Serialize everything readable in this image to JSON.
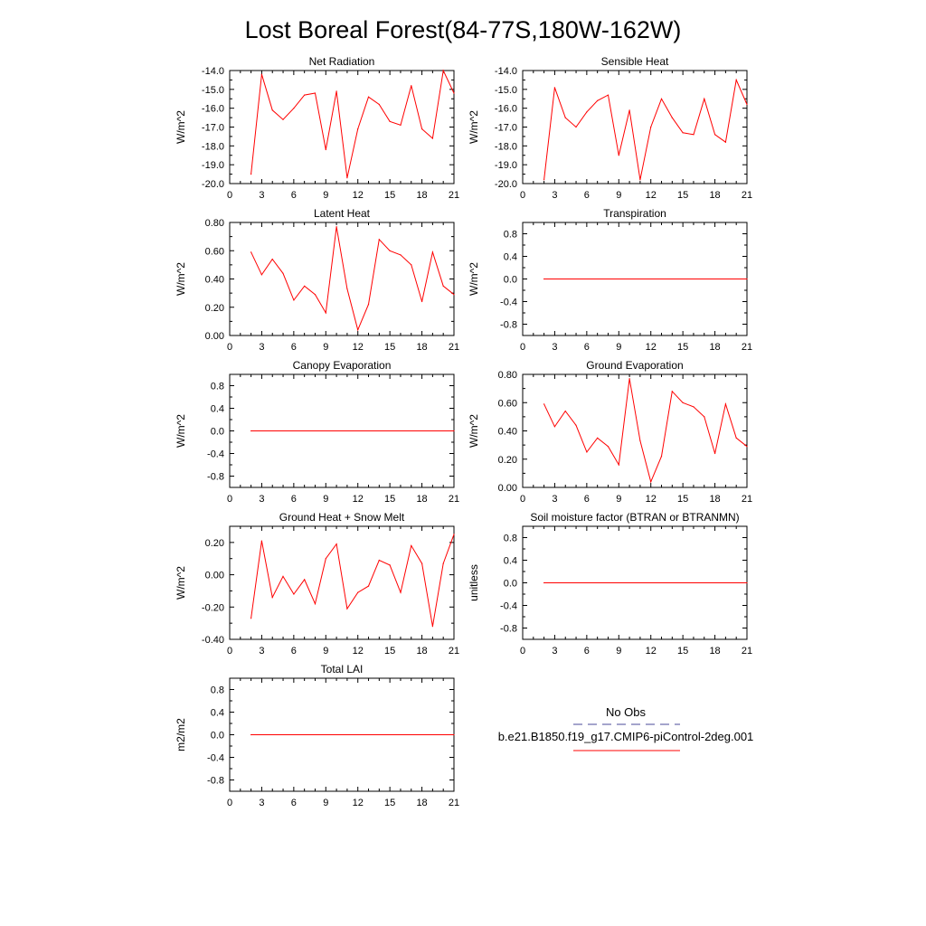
{
  "title": "Lost Boreal Forest(84-77S,180W-162W)",
  "colors": {
    "model": "#ff0000",
    "obs": "#4a4a9a",
    "axis": "#000000"
  },
  "legend": {
    "obs_label": "No Obs",
    "model_label": "b.e21.B1850.f19_g17.CMIP6-piControl-2deg.001"
  },
  "chart_data": [
    {
      "id": "net-radiation",
      "type": "line",
      "title": "Net Radiation",
      "ylabel": "W/m^2",
      "xlim": [
        0,
        21
      ],
      "xticks": [
        0,
        3,
        6,
        9,
        12,
        15,
        18,
        21
      ],
      "ylim": [
        -20.0,
        -14.0
      ],
      "yticks": [
        -20,
        -19,
        -18,
        -17,
        -16,
        -15,
        -14
      ],
      "ytick_labels": [
        "-20.0",
        "-19.0",
        "-18.0",
        "-17.0",
        "-16.0",
        "-15.0",
        "-14.0"
      ],
      "x": [
        2,
        3,
        4,
        5,
        6,
        7,
        8,
        9,
        10,
        11,
        12,
        13,
        14,
        15,
        16,
        17,
        18,
        19,
        20,
        21
      ],
      "series": [
        {
          "name": "b.e21.B1850.f19_g17.CMIP6-piControl-2deg.001",
          "values": [
            -19.5,
            -14.2,
            -16.1,
            -16.6,
            -16.0,
            -15.3,
            -15.2,
            -18.2,
            -15.1,
            -19.7,
            -17.1,
            -15.4,
            -15.8,
            -16.7,
            -16.9,
            -14.8,
            -17.1,
            -17.6,
            -14.0,
            -15.2
          ]
        }
      ]
    },
    {
      "id": "sensible-heat",
      "type": "line",
      "title": "Sensible Heat",
      "ylabel": "W/m^2",
      "xlim": [
        0,
        21
      ],
      "xticks": [
        0,
        3,
        6,
        9,
        12,
        15,
        18,
        21
      ],
      "ylim": [
        -20.0,
        -14.0
      ],
      "yticks": [
        -20,
        -19,
        -18,
        -17,
        -16,
        -15,
        -14
      ],
      "ytick_labels": [
        "-20.0",
        "-19.0",
        "-18.0",
        "-17.0",
        "-16.0",
        "-15.0",
        "-14.0"
      ],
      "x": [
        2,
        3,
        4,
        5,
        6,
        7,
        8,
        9,
        10,
        11,
        12,
        13,
        14,
        15,
        16,
        17,
        18,
        19,
        20,
        21
      ],
      "series": [
        {
          "name": "b.e21.B1850.f19_g17.CMIP6-piControl-2deg.001",
          "values": [
            -19.8,
            -14.9,
            -16.5,
            -17.0,
            -16.2,
            -15.6,
            -15.3,
            -18.5,
            -16.1,
            -19.8,
            -17.0,
            -15.5,
            -16.5,
            -17.3,
            -17.4,
            -15.5,
            -17.4,
            -17.8,
            -14.5,
            -15.8
          ]
        }
      ]
    },
    {
      "id": "latent-heat",
      "type": "line",
      "title": "Latent Heat",
      "ylabel": "W/m^2",
      "xlim": [
        0,
        21
      ],
      "xticks": [
        0,
        3,
        6,
        9,
        12,
        15,
        18,
        21
      ],
      "ylim": [
        0.0,
        0.8
      ],
      "yticks": [
        0,
        0.2,
        0.4,
        0.6,
        0.8
      ],
      "ytick_labels": [
        "0.00",
        "0.20",
        "0.40",
        "0.60",
        "0.80"
      ],
      "x": [
        2,
        3,
        4,
        5,
        6,
        7,
        8,
        9,
        10,
        11,
        12,
        13,
        14,
        15,
        16,
        17,
        18,
        19,
        20,
        21
      ],
      "series": [
        {
          "name": "b.e21.B1850.f19_g17.CMIP6-piControl-2deg.001",
          "values": [
            0.59,
            0.43,
            0.54,
            0.44,
            0.25,
            0.35,
            0.29,
            0.16,
            0.77,
            0.33,
            0.04,
            0.22,
            0.68,
            0.6,
            0.57,
            0.5,
            0.24,
            0.59,
            0.35,
            0.29
          ]
        }
      ]
    },
    {
      "id": "transpiration",
      "type": "line",
      "title": "Transpiration",
      "ylabel": "W/m^2",
      "xlim": [
        0,
        21
      ],
      "xticks": [
        0,
        3,
        6,
        9,
        12,
        15,
        18,
        21
      ],
      "ylim": [
        -1.0,
        1.0
      ],
      "yticks": [
        -0.8,
        -0.4,
        0,
        0.4,
        0.8
      ],
      "ytick_labels": [
        "-0.8",
        "-0.4",
        "0.0",
        "0.4",
        "0.8"
      ],
      "x": [
        2,
        21
      ],
      "series": [
        {
          "name": "b.e21.B1850.f19_g17.CMIP6-piControl-2deg.001",
          "values": [
            0.0,
            0.0
          ]
        }
      ]
    },
    {
      "id": "canopy-evaporation",
      "type": "line",
      "title": "Canopy Evaporation",
      "ylabel": "W/m^2",
      "xlim": [
        0,
        21
      ],
      "xticks": [
        0,
        3,
        6,
        9,
        12,
        15,
        18,
        21
      ],
      "ylim": [
        -1.0,
        1.0
      ],
      "yticks": [
        -0.8,
        -0.4,
        0,
        0.4,
        0.8
      ],
      "ytick_labels": [
        "-0.8",
        "-0.4",
        "0.0",
        "0.4",
        "0.8"
      ],
      "x": [
        2,
        21
      ],
      "series": [
        {
          "name": "b.e21.B1850.f19_g17.CMIP6-piControl-2deg.001",
          "values": [
            0.0,
            0.0
          ]
        }
      ]
    },
    {
      "id": "ground-evaporation",
      "type": "line",
      "title": "Ground Evaporation",
      "ylabel": "W/m^2",
      "xlim": [
        0,
        21
      ],
      "xticks": [
        0,
        3,
        6,
        9,
        12,
        15,
        18,
        21
      ],
      "ylim": [
        0.0,
        0.8
      ],
      "yticks": [
        0,
        0.2,
        0.4,
        0.6,
        0.8
      ],
      "ytick_labels": [
        "0.00",
        "0.20",
        "0.40",
        "0.60",
        "0.80"
      ],
      "x": [
        2,
        3,
        4,
        5,
        6,
        7,
        8,
        9,
        10,
        11,
        12,
        13,
        14,
        15,
        16,
        17,
        18,
        19,
        20,
        21
      ],
      "series": [
        {
          "name": "b.e21.B1850.f19_g17.CMIP6-piControl-2deg.001",
          "values": [
            0.59,
            0.43,
            0.54,
            0.44,
            0.25,
            0.35,
            0.29,
            0.16,
            0.77,
            0.33,
            0.04,
            0.22,
            0.68,
            0.6,
            0.57,
            0.5,
            0.24,
            0.59,
            0.35,
            0.29
          ]
        }
      ]
    },
    {
      "id": "ground-heat-snow-melt",
      "type": "line",
      "title": "Ground Heat + Snow Melt",
      "ylabel": "W/m^2",
      "xlim": [
        0,
        21
      ],
      "xticks": [
        0,
        3,
        6,
        9,
        12,
        15,
        18,
        21
      ],
      "ylim": [
        -0.4,
        0.3
      ],
      "yticks": [
        -0.4,
        -0.2,
        0,
        0.2
      ],
      "ytick_labels": [
        "-0.40",
        "-0.20",
        "0.00",
        "0.20"
      ],
      "x": [
        2,
        3,
        4,
        5,
        6,
        7,
        8,
        9,
        10,
        11,
        12,
        13,
        14,
        15,
        16,
        17,
        18,
        19,
        20,
        21
      ],
      "series": [
        {
          "name": "b.e21.B1850.f19_g17.CMIP6-piControl-2deg.001",
          "values": [
            -0.27,
            0.21,
            -0.14,
            -0.01,
            -0.12,
            -0.03,
            -0.18,
            0.1,
            0.19,
            -0.21,
            -0.11,
            -0.07,
            0.09,
            0.06,
            -0.11,
            0.18,
            0.07,
            -0.32,
            0.07,
            0.25
          ]
        }
      ]
    },
    {
      "id": "soil-moisture-factor",
      "type": "line",
      "title": "Soil moisture factor (BTRAN or BTRANMN)",
      "ylabel": "unitless",
      "xlim": [
        0,
        21
      ],
      "xticks": [
        0,
        3,
        6,
        9,
        12,
        15,
        18,
        21
      ],
      "ylim": [
        -1.0,
        1.0
      ],
      "yticks": [
        -0.8,
        -0.4,
        0,
        0.4,
        0.8
      ],
      "ytick_labels": [
        "-0.8",
        "-0.4",
        "0.0",
        "0.4",
        "0.8"
      ],
      "x": [
        2,
        21
      ],
      "series": [
        {
          "name": "b.e21.B1850.f19_g17.CMIP6-piControl-2deg.001",
          "values": [
            0.0,
            0.0
          ]
        }
      ]
    },
    {
      "id": "total-lai",
      "type": "line",
      "title": "Total LAI",
      "ylabel": "m2/m2",
      "xlim": [
        0,
        21
      ],
      "xticks": [
        0,
        3,
        6,
        9,
        12,
        15,
        18,
        21
      ],
      "ylim": [
        -1.0,
        1.0
      ],
      "yticks": [
        -0.8,
        -0.4,
        0,
        0.4,
        0.8
      ],
      "ytick_labels": [
        "-0.8",
        "-0.4",
        "0.0",
        "0.4",
        "0.8"
      ],
      "x": [
        2,
        21
      ],
      "series": [
        {
          "name": "b.e21.B1850.f19_g17.CMIP6-piControl-2deg.001",
          "values": [
            0.0,
            0.0
          ]
        }
      ]
    }
  ]
}
